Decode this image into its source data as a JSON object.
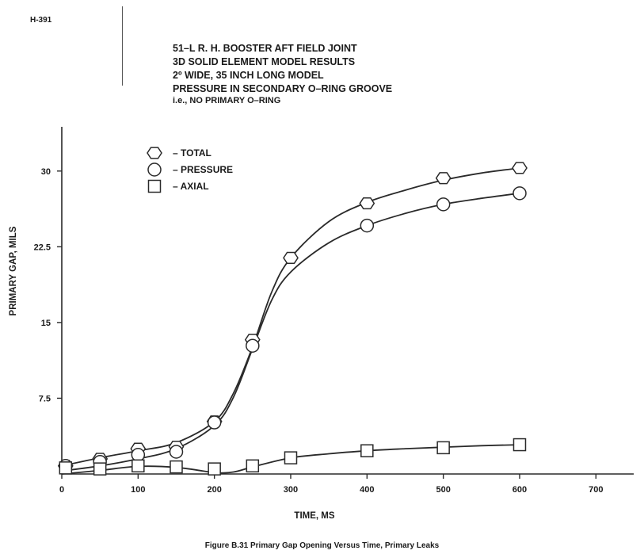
{
  "document": {
    "id": "H-391",
    "title_lines": [
      "51–L R. H. BOOSTER AFT FIELD JOINT",
      "3D SOLID ELEMENT MODEL RESULTS",
      "2º WIDE, 35 INCH LONG MODEL",
      "PRESSURE IN SECONDARY O–RING GROOVE",
      "i.e., NO PRIMARY O–RING"
    ],
    "caption": "Figure B.31 Primary Gap Opening Versus Time, Primary Leaks"
  },
  "chart_data": {
    "type": "line",
    "xlabel": "TIME, MS",
    "ylabel": "PRIMARY GAP, MILS",
    "xlim": [
      0,
      750
    ],
    "ylim": [
      0,
      34
    ],
    "x_ticks": [
      0,
      100,
      200,
      300,
      400,
      500,
      600,
      700
    ],
    "x_tick_labels": [
      "0",
      "100",
      "200",
      "300",
      "400",
      "500",
      "600",
      "700"
    ],
    "y_ticks": [
      7.5,
      15,
      22.5,
      30
    ],
    "y_tick_labels": [
      "7.5",
      "15",
      "22.5",
      "30"
    ],
    "grid": false,
    "legend_position": "top-left",
    "series": [
      {
        "name": "– TOTAL",
        "marker": "hexagon",
        "x": [
          5,
          50,
          100,
          150,
          200,
          250,
          300,
          400,
          500,
          600
        ],
        "y": [
          0.8,
          1.5,
          2.5,
          2.7,
          5.2,
          13.3,
          21.4,
          26.8,
          29.3,
          30.3
        ],
        "curve_x": [
          0,
          50,
          100,
          150,
          200,
          225,
          250,
          275,
          300,
          350,
          400,
          450,
          500,
          550,
          600
        ],
        "curve_y": [
          0.8,
          1.6,
          2.3,
          3.1,
          5.2,
          8.0,
          12.6,
          18.0,
          21.4,
          25.0,
          26.9,
          28.1,
          29.1,
          29.8,
          30.3
        ]
      },
      {
        "name": "– PRESSURE",
        "marker": "circle",
        "x": [
          5,
          50,
          100,
          150,
          200,
          250,
          400,
          500,
          600
        ],
        "y": [
          0.8,
          1.2,
          1.9,
          2.2,
          5.1,
          12.7,
          24.6,
          26.7,
          27.8
        ],
        "curve_x": [
          0,
          50,
          100,
          150,
          200,
          225,
          250,
          275,
          300,
          350,
          400,
          450,
          500,
          550,
          600
        ],
        "curve_y": [
          0.3,
          0.8,
          1.5,
          2.5,
          4.8,
          7.6,
          12.4,
          17.2,
          20.0,
          22.9,
          24.6,
          25.8,
          26.7,
          27.3,
          27.8
        ]
      },
      {
        "name": "– AXIAL",
        "marker": "square",
        "x": [
          5,
          50,
          100,
          150,
          200,
          250,
          300,
          400,
          500,
          600
        ],
        "y": [
          0.6,
          0.5,
          0.8,
          0.7,
          0.5,
          0.8,
          1.6,
          2.3,
          2.6,
          2.9
        ],
        "curve_x": [
          0,
          50,
          100,
          150,
          200,
          225,
          250,
          300,
          350,
          400,
          450,
          500,
          550,
          600
        ],
        "curve_y": [
          0.0,
          0.35,
          0.75,
          0.65,
          0.15,
          0.2,
          0.7,
          1.6,
          2.0,
          2.3,
          2.5,
          2.65,
          2.8,
          2.9
        ]
      }
    ]
  }
}
